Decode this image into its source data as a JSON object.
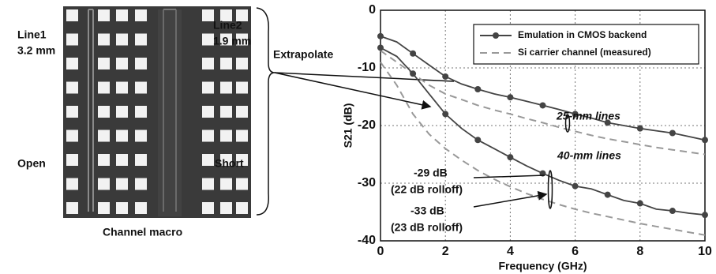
{
  "die_photo": {
    "labels": [
      "Line1",
      "3.2 mm",
      "Line2",
      "1.9 mm",
      "Open",
      "Short",
      "Channel macro",
      "Extrapolate"
    ]
  },
  "chart_data": {
    "type": "line",
    "x_label": "Frequency (GHz)",
    "y_label": "S21 (dB)",
    "xlim": [
      0,
      10
    ],
    "xticks": [
      0,
      2,
      4,
      6,
      8,
      10
    ],
    "ylim": [
      -40,
      0
    ],
    "yticks": [
      0,
      -10,
      -20,
      -30,
      -40
    ],
    "grid": true,
    "legend": "upper right",
    "x": [
      0,
      0.5,
      1,
      1.5,
      2,
      2.5,
      3,
      3.5,
      4,
      4.5,
      5,
      5.5,
      6,
      6.5,
      7,
      7.5,
      8,
      8.5,
      9,
      9.5,
      10
    ],
    "series": [
      {
        "name": "Emulation in CMOS backend",
        "color": "#444444",
        "dash": false,
        "markers": true,
        "values": [
          -4.5,
          -5.5,
          -7.5,
          -9.5,
          -11.5,
          -12.8,
          -13.7,
          -14.5,
          -15.1,
          -15.8,
          -16.5,
          -17.2,
          -18,
          -18.7,
          -19.5,
          -20,
          -20.5,
          -20.9,
          -21.3,
          -21.9,
          -22.5
        ]
      },
      {
        "name": "Si carrier channel (measured)",
        "color": "#999999",
        "dash": true,
        "markers": false,
        "values": [
          -7,
          -9,
          -11,
          -13,
          -14.5,
          -15.5,
          -16.5,
          -17.3,
          -18,
          -18.8,
          -19.5,
          -20.3,
          -21,
          -21.7,
          -22.3,
          -22.8,
          -23.3,
          -23.8,
          -24.2,
          -24.6,
          -25
        ]
      },
      {
        "color": "#444444",
        "dash": false,
        "markers": true,
        "values": [
          -6.5,
          -8,
          -11,
          -14.5,
          -18,
          -20.5,
          -22.5,
          -24,
          -25.5,
          -27,
          -28.3,
          -29.5,
          -30.5,
          -31,
          -32,
          -33,
          -33.5,
          -34.5,
          -34.8,
          -35.2,
          -35.5
        ]
      },
      {
        "color": "#999999",
        "dash": true,
        "markers": false,
        "values": [
          -9,
          -13,
          -18,
          -21.5,
          -24,
          -26,
          -27.8,
          -29.3,
          -30.6,
          -31.8,
          -32.8,
          -33.7,
          -34.5,
          -35.2,
          -35.8,
          -36.4,
          -37,
          -37.5,
          -38,
          -38.5,
          -39
        ]
      }
    ],
    "annotations": [
      "25-mm lines",
      "40-mm lines",
      "-29 dB",
      "(22 dB rolloff)",
      "-33 dB",
      "(23 dB rolloff)"
    ]
  }
}
